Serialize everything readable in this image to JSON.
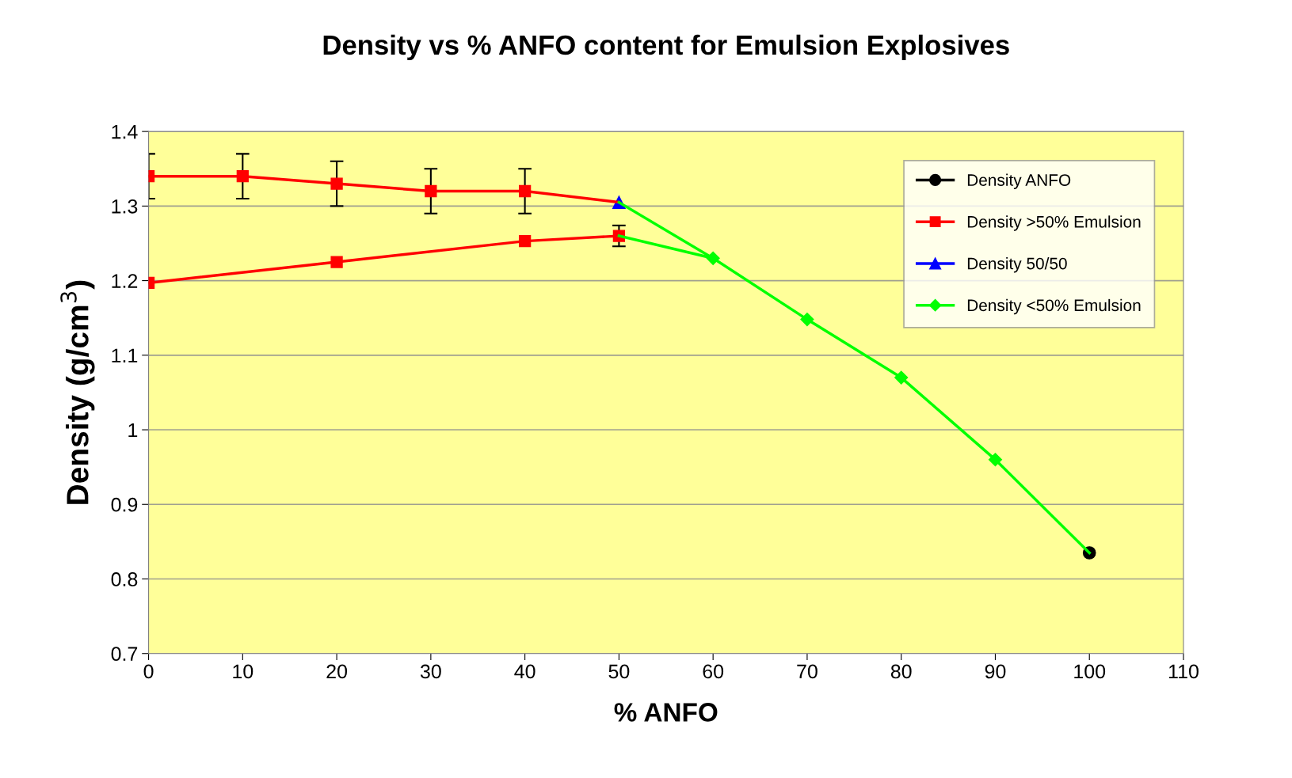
{
  "chart_data": {
    "type": "line",
    "title": "Density vs % ANFO content for Emulsion Explosives",
    "xlabel": "% ANFO",
    "ylabel": "Density (g/cm$^{3}$)",
    "xlim": [
      0,
      110
    ],
    "xticks": [
      0,
      10,
      20,
      30,
      40,
      50,
      60,
      70,
      80,
      90,
      100,
      110
    ],
    "ylim": [
      0.7,
      1.4
    ],
    "yticks": [
      0.7,
      0.8,
      0.9,
      1,
      1.1,
      1.2,
      1.3,
      1.4
    ],
    "grid": "y",
    "legend": "top right",
    "line_style": "solid",
    "series": [
      {
        "name": "Density ANFO",
        "color": "#000000",
        "marker": "circle",
        "x": [
          100
        ],
        "values": [
          0.835
        ]
      },
      {
        "name": "Density >50% Emulsion",
        "color": "#ff0000",
        "marker": "square",
        "x": [
          0,
          10,
          20,
          30,
          40
        ],
        "values": [
          1.34,
          1.34,
          1.33,
          1.32,
          1.32
        ],
        "errors": [
          0.03,
          0.03,
          0.03,
          0.03,
          0.03
        ]
      },
      {
        "name": "Density 50/50",
        "color": "#0000ff",
        "marker": "triangle",
        "x": [
          50
        ],
        "values": [
          1.305
        ]
      },
      {
        "name": "Density <50% Emulsion",
        "color": "#00ff00",
        "marker": "diamond",
        "x": [
          60,
          70,
          80,
          90
        ],
        "values": [
          1.23,
          1.148,
          1.07,
          0.96
        ]
      },
      {
        "color": "#ff0000",
        "marker": "square",
        "x": [
          0,
          20,
          40,
          50
        ],
        "values": [
          1.197,
          1.225,
          1.253,
          1.26
        ],
        "errors": [
          null,
          null,
          null,
          0.014
        ]
      },
      {
        "color": "#ff0000",
        "marker": "none",
        "x": [
          40,
          50
        ],
        "values": [
          1.32,
          1.305
        ]
      },
      {
        "color": "#00ff00",
        "marker": "none",
        "x": [
          50,
          60
        ],
        "values": [
          1.305,
          1.23
        ]
      },
      {
        "color": "#00ff00",
        "marker": "none",
        "x": [
          50,
          60
        ],
        "values": [
          1.26,
          1.23
        ]
      },
      {
        "color": "#00ff00",
        "marker": "none",
        "x": [
          90,
          100
        ],
        "values": [
          0.96,
          0.835
        ]
      }
    ]
  }
}
